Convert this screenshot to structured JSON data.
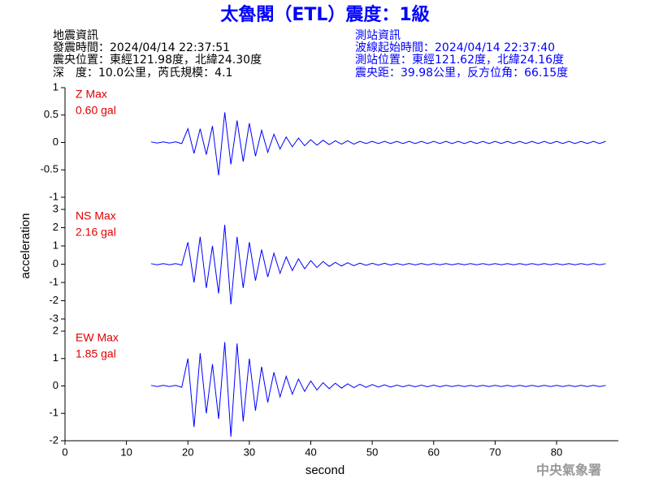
{
  "header": {
    "title": "太魯閣（ETL）震度：1級",
    "left": [
      "地震資訊",
      "發震時間：2024/04/14 22:37:51",
      "震央位置：東經121.98度，北緯24.30度",
      "深　度：10.0公里，芮氏規模：4.1"
    ],
    "right": [
      "測站資訊",
      "波線起始時間：2024/04/14 22:37:40",
      "測站位置：東經121.62度，北緯24.16度",
      "震央距：39.98公里，反方位角：66.15度"
    ],
    "footer": "中央氣象署"
  },
  "chart_data": {
    "type": "line",
    "x_label": "second",
    "y_label": "acceleration",
    "xlim": [
      0,
      90
    ],
    "xticks": [
      0,
      10,
      20,
      30,
      40,
      50,
      60,
      70,
      80
    ],
    "x": [
      14,
      15,
      16,
      17,
      18,
      19,
      20,
      21,
      22,
      23,
      24,
      25,
      26,
      27,
      28,
      29,
      30,
      31,
      32,
      33,
      34,
      35,
      36,
      37,
      38,
      39,
      40,
      41,
      42,
      43,
      44,
      45,
      46,
      47,
      48,
      49,
      50,
      51,
      52,
      53,
      54,
      55,
      56,
      57,
      58,
      59,
      60,
      61,
      62,
      63,
      64,
      65,
      66,
      67,
      68,
      69,
      70,
      71,
      72,
      73,
      74,
      75,
      76,
      77,
      78,
      79,
      80,
      81,
      82,
      83,
      84,
      85,
      86,
      87,
      88
    ],
    "series": [
      {
        "name": "Z Max",
        "max_label": "0.60 gal",
        "color": "#0000ff",
        "label_color": "#e00000",
        "ylim": [
          -1,
          1
        ],
        "yticks": [
          1,
          0.5,
          0,
          -0.5,
          -1
        ],
        "values": [
          0.01,
          -0.01,
          0.01,
          -0.01,
          0.01,
          -0.02,
          0.25,
          -0.2,
          0.25,
          -0.22,
          0.3,
          -0.6,
          0.55,
          -0.4,
          0.4,
          -0.35,
          0.35,
          -0.25,
          0.22,
          -0.18,
          0.15,
          -0.12,
          0.1,
          -0.08,
          0.08,
          -0.06,
          0.05,
          -0.05,
          0.04,
          -0.04,
          0.03,
          -0.03,
          0.03,
          -0.03,
          0.02,
          -0.02,
          0.02,
          -0.02,
          0.02,
          -0.02,
          0.02,
          -0.02,
          0.02,
          -0.02,
          0.02,
          -0.02,
          0.02,
          -0.02,
          0.02,
          -0.02,
          0.02,
          -0.02,
          0.02,
          -0.02,
          0.02,
          -0.02,
          0.02,
          -0.02,
          0.02,
          -0.02,
          0.02,
          -0.02,
          0.02,
          -0.02,
          0.02,
          -0.02,
          0.02,
          -0.02,
          0.02,
          -0.02,
          0.02,
          -0.02,
          0.02,
          -0.02,
          0.02
        ]
      },
      {
        "name": "NS Max",
        "max_label": "2.16 gal",
        "color": "#0000ff",
        "label_color": "#e00000",
        "ylim": [
          -3,
          3
        ],
        "yticks": [
          3,
          2,
          1,
          0,
          -1,
          -2,
          -3
        ],
        "values": [
          0.03,
          -0.03,
          0.03,
          -0.03,
          0.03,
          -0.05,
          1.2,
          -1.0,
          1.5,
          -1.3,
          1.0,
          -1.6,
          2.16,
          -2.2,
          1.5,
          -1.3,
          1.2,
          -0.9,
          0.8,
          -0.7,
          0.6,
          -0.5,
          0.4,
          -0.35,
          0.3,
          -0.25,
          0.2,
          -0.18,
          0.15,
          -0.12,
          0.1,
          -0.1,
          0.08,
          -0.08,
          0.06,
          -0.06,
          0.05,
          -0.05,
          0.05,
          -0.05,
          0.04,
          -0.04,
          0.04,
          -0.04,
          0.04,
          -0.04,
          0.03,
          -0.03,
          0.03,
          -0.03,
          0.03,
          -0.03,
          0.03,
          -0.03,
          0.03,
          -0.03,
          0.03,
          -0.03,
          0.03,
          -0.03,
          0.03,
          -0.03,
          0.03,
          -0.03,
          0.03,
          -0.03,
          0.03,
          -0.03,
          0.03,
          -0.03,
          0.03,
          -0.03,
          0.03,
          -0.03,
          0.03
        ]
      },
      {
        "name": "EW Max",
        "max_label": "1.85 gal",
        "color": "#0000ff",
        "label_color": "#e00000",
        "ylim": [
          -2,
          2
        ],
        "yticks": [
          2,
          1,
          0,
          -1,
          -2
        ],
        "values": [
          0.02,
          -0.02,
          0.02,
          -0.02,
          0.02,
          -0.05,
          1.0,
          -1.5,
          1.2,
          -1.0,
          0.8,
          -1.2,
          1.6,
          -1.85,
          1.55,
          -1.3,
          1.0,
          -0.9,
          0.7,
          -0.6,
          0.5,
          -0.4,
          0.35,
          -0.3,
          0.25,
          -0.2,
          0.18,
          -0.15,
          0.12,
          -0.1,
          0.1,
          -0.08,
          0.08,
          -0.06,
          0.06,
          -0.05,
          0.05,
          -0.04,
          0.04,
          -0.04,
          0.03,
          -0.03,
          0.03,
          -0.03,
          0.03,
          -0.03,
          0.03,
          -0.03,
          0.02,
          -0.02,
          0.02,
          -0.02,
          0.02,
          -0.02,
          0.02,
          -0.02,
          0.02,
          -0.02,
          0.02,
          -0.02,
          0.02,
          -0.02,
          0.02,
          -0.02,
          0.02,
          -0.02,
          0.02,
          -0.02,
          0.02,
          -0.02,
          0.02,
          -0.02,
          0.02,
          -0.02,
          0.02
        ]
      }
    ]
  }
}
